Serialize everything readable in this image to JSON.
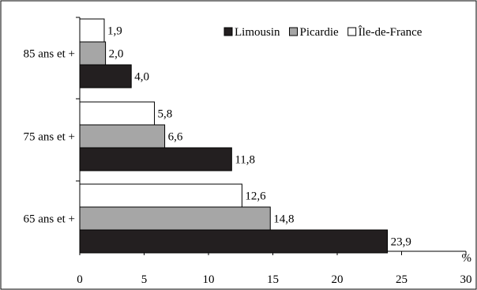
{
  "chart_data": {
    "type": "bar",
    "orientation": "horizontal",
    "categories": [
      "85 ans et +",
      "75 ans et +",
      "65 ans et +"
    ],
    "series": [
      {
        "name": "Île-de-France",
        "values": [
          1.9,
          5.8,
          12.6
        ],
        "labels": [
          "1,9",
          "5,8",
          "12,6"
        ],
        "color": "#ffffff"
      },
      {
        "name": "Picardie",
        "values": [
          2.0,
          6.6,
          14.8
        ],
        "labels": [
          "2,0",
          "6,6",
          "14,8"
        ],
        "color": "#a6a6a6"
      },
      {
        "name": "Limousin",
        "values": [
          4.0,
          11.8,
          23.9
        ],
        "labels": [
          "4,0",
          "11,8",
          "23,9"
        ],
        "color": "#231f20"
      }
    ],
    "legend_order": [
      "Limousin",
      "Picardie",
      "Île-de-France"
    ],
    "legend_position": "top-right",
    "xlim": [
      0,
      30
    ],
    "xticks": [
      0,
      5,
      10,
      15,
      20,
      25,
      30
    ],
    "xunit": "%",
    "grid": false
  }
}
